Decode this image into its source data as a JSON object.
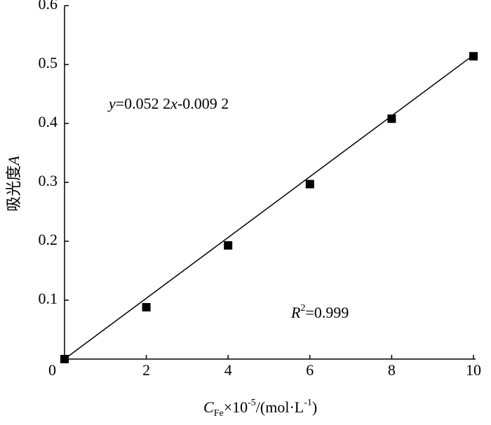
{
  "chart_data": {
    "type": "scatter",
    "x_label": [
      "C",
      "Fe",
      "×10",
      "-5",
      "/(mol·L",
      "-1",
      ")"
    ],
    "y_label": [
      "吸光度",
      "A"
    ],
    "annotations": {
      "equation": [
        "y",
        "=0.052 2",
        "x",
        "-0.009 2"
      ],
      "r2": [
        "R",
        "2",
        "=0.999"
      ]
    },
    "origin_label": "0",
    "series": [
      {
        "kind": "points",
        "color": "#000000",
        "x": [
          0,
          2,
          4,
          6,
          8,
          10
        ],
        "values": [
          0.0,
          0.088,
          0.193,
          0.297,
          0.408,
          0.514
        ]
      },
      {
        "kind": "fit",
        "color": "#000000",
        "x": [
          0,
          10
        ],
        "values": [
          0.0,
          0.516
        ]
      }
    ],
    "xlim": [
      0,
      10
    ],
    "xticks": [
      0,
      2,
      4,
      6,
      8,
      10
    ],
    "ylim": [
      0,
      0.6
    ],
    "yticks": [
      0.1,
      0.2,
      0.3,
      0.4,
      0.5,
      0.6
    ]
  }
}
